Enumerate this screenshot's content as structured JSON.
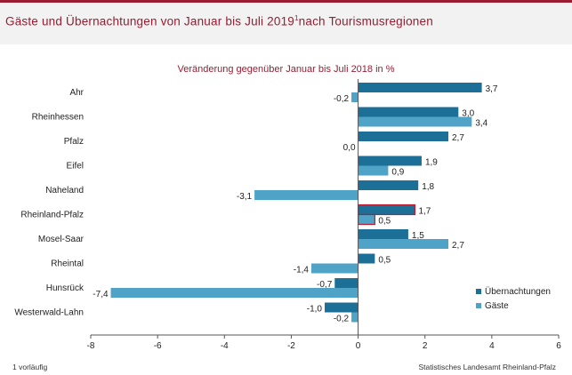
{
  "header": {
    "title": "Gäste und Übernachtungen von Januar bis Juli 2019",
    "title_sup": "1",
    "title_suffix": "nach Tourismusregionen"
  },
  "footer": {
    "footnote": "1 vorläufig",
    "source": "Statistisches Landesamt Rheinland-Pfalz"
  },
  "colors": {
    "uebernachtungen": "#1c6f96",
    "gaeste": "#4ea3c6",
    "highlight_outline": "#c0182e",
    "axis": "#555555"
  },
  "chart_data": {
    "type": "bar",
    "orientation": "horizontal",
    "title": "Veränderung gegenüber Januar bis Juli 2018 in %",
    "categories": [
      "Ahr",
      "Rheinhessen",
      "Pfalz",
      "Eifel",
      "Naheland",
      "Rheinland-Pfalz",
      "Mosel-Saar",
      "Rheintal",
      "Hunsrück",
      "Westerwald-Lahn"
    ],
    "series": [
      {
        "name": "Übernachtungen",
        "values": [
          3.7,
          3.0,
          2.7,
          1.9,
          1.8,
          1.7,
          1.5,
          0.5,
          -0.7,
          -1.0
        ],
        "labels": [
          "3,7",
          "3,0",
          "2,7",
          "1,9",
          "1,8",
          "1,7",
          "1,5",
          "0,5",
          "-0,7",
          "-1,0"
        ]
      },
      {
        "name": "Gäste",
        "values": [
          -0.2,
          3.4,
          0.0,
          0.9,
          -3.1,
          0.5,
          2.7,
          -1.4,
          -7.4,
          -0.2
        ],
        "labels": [
          "-0,2",
          "3,4",
          "0,0",
          "0,9",
          "-3,1",
          "0,5",
          "2,7",
          "-1,4",
          "-7,4",
          "-0,2"
        ]
      }
    ],
    "highlight_category": "Rheinland-Pfalz",
    "xlim": [
      -8,
      6
    ],
    "xticks": [
      -8,
      -6,
      -4,
      -2,
      0,
      2,
      4,
      6
    ],
    "xtick_labels": [
      "-8",
      "-6",
      "-4",
      "-2",
      "0",
      "2",
      "4",
      "6"
    ],
    "legend_position": "bottom-right",
    "grid": false
  }
}
